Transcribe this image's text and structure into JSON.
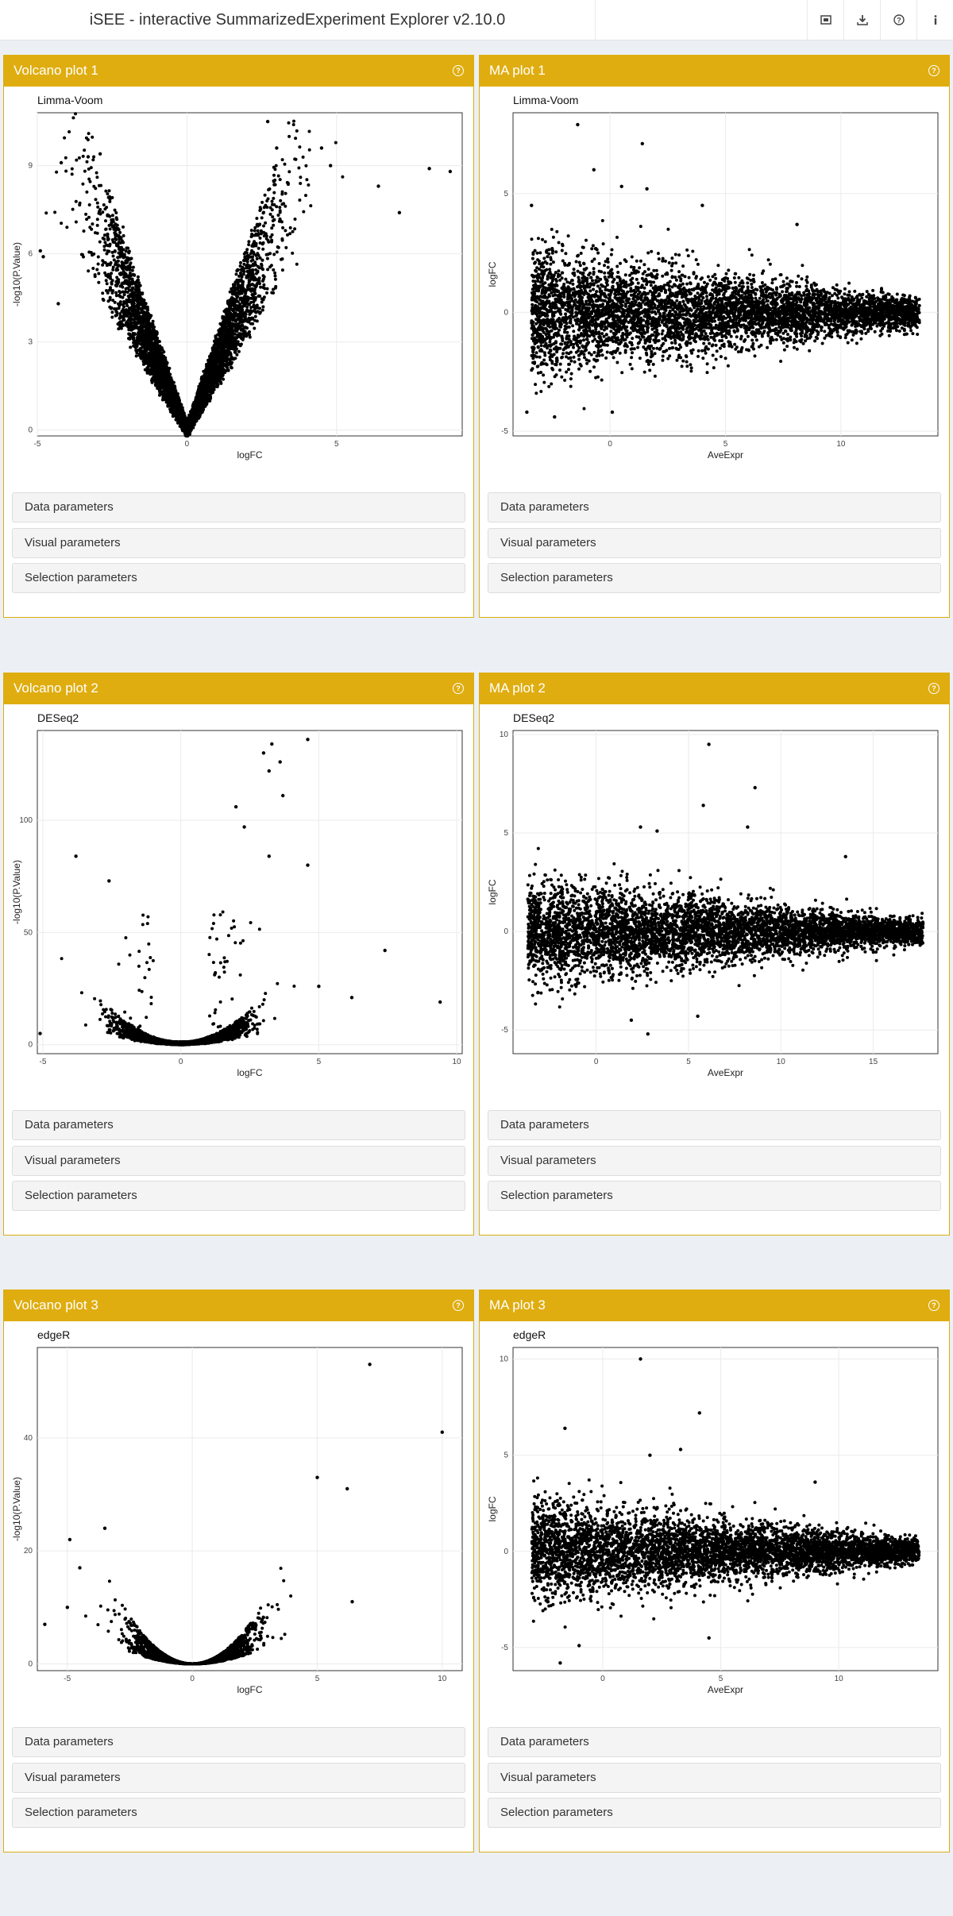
{
  "app": {
    "title": "iSEE - interactive SummarizedExperiment Explorer v2.10.0",
    "header_icons": [
      "screenshot-icon",
      "download-icon",
      "help-icon",
      "info-icon"
    ]
  },
  "colors": {
    "panel_header": "#dfad10",
    "background": "#ecf0f5",
    "points": "#000000"
  },
  "param_labels": {
    "data": "Data parameters",
    "visual": "Visual parameters",
    "selection": "Selection parameters"
  },
  "panels": [
    {
      "title": "Volcano plot 1",
      "chart_data": {
        "type": "scatter",
        "kind": "volcano",
        "subtitle": "Limma-Voom",
        "xlabel": "logFC",
        "ylabel": "-log10(P.Value)",
        "xlim": [
          -5,
          9.2
        ],
        "ylim": [
          -0.2,
          10.8
        ],
        "xticks": [
          -5,
          0,
          5
        ],
        "yticks": [
          0,
          3,
          6,
          9
        ],
        "outliers": [
          [
            2.7,
            10.5
          ],
          [
            4.5,
            9.6
          ],
          [
            6.4,
            8.3
          ],
          [
            7.1,
            7.4
          ],
          [
            8.1,
            8.9
          ],
          [
            8.8,
            8.8
          ],
          [
            3.0,
            9.6
          ],
          [
            -2.9,
            9.4
          ],
          [
            -3.3,
            9.3
          ],
          [
            -4.2,
            9.1
          ],
          [
            -4.8,
            5.9
          ],
          [
            -4.3,
            4.3
          ],
          [
            -4.9,
            6.1
          ],
          [
            4.8,
            9.0
          ]
        ],
        "grid": true
      }
    },
    {
      "title": "MA plot 1",
      "chart_data": {
        "type": "scatter",
        "kind": "ma",
        "subtitle": "Limma-Voom",
        "xlabel": "AveExpr",
        "ylabel": "logFC",
        "xlim": [
          -4.2,
          14.2
        ],
        "ylim": [
          -5.2,
          8.4
        ],
        "xticks": [
          0,
          5,
          10
        ],
        "yticks": [
          -5,
          0,
          5
        ],
        "outliers": [
          [
            -1.4,
            7.9
          ],
          [
            1.4,
            7.1
          ],
          [
            -0.7,
            6.0
          ],
          [
            0.5,
            5.3
          ],
          [
            1.6,
            5.2
          ],
          [
            -3.4,
            4.5
          ],
          [
            4.0,
            4.5
          ],
          [
            8.1,
            3.7
          ],
          [
            -3.6,
            -4.2
          ],
          [
            0.1,
            -4.2
          ],
          [
            -2.4,
            -4.4
          ]
        ],
        "grid": true
      }
    },
    {
      "title": "Volcano plot 2",
      "chart_data": {
        "type": "scatter",
        "kind": "volcano",
        "subtitle": "DESeq2",
        "xlabel": "logFC",
        "ylabel": "-log10(P.Value)",
        "xlim": [
          -5.2,
          10.2
        ],
        "ylim": [
          -4,
          140
        ],
        "xticks": [
          -5,
          0,
          5,
          10
        ],
        "yticks": [
          0,
          50,
          100
        ],
        "outliers": [
          [
            4.6,
            136
          ],
          [
            3.3,
            134
          ],
          [
            3.0,
            130
          ],
          [
            3.6,
            126
          ],
          [
            3.2,
            122
          ],
          [
            3.7,
            111
          ],
          [
            2.0,
            106
          ],
          [
            2.3,
            97
          ],
          [
            3.2,
            84
          ],
          [
            4.6,
            80
          ],
          [
            -3.8,
            84
          ],
          [
            -2.6,
            73
          ],
          [
            7.4,
            42
          ],
          [
            9.4,
            19
          ],
          [
            6.2,
            21
          ],
          [
            5.0,
            26
          ],
          [
            -5.1,
            5
          ]
        ],
        "grid": true
      }
    },
    {
      "title": "MA plot 2",
      "chart_data": {
        "type": "scatter",
        "kind": "ma",
        "subtitle": "DESeq2",
        "xlabel": "AveExpr",
        "ylabel": "logFC",
        "xlim": [
          -4.5,
          18.5
        ],
        "ylim": [
          -6.2,
          10.2
        ],
        "xticks": [
          0,
          5,
          10,
          15
        ],
        "yticks": [
          -5,
          0,
          5,
          10
        ],
        "outliers": [
          [
            6.1,
            9.5
          ],
          [
            8.6,
            7.3
          ],
          [
            5.8,
            6.4
          ],
          [
            8.2,
            5.3
          ],
          [
            3.3,
            5.1
          ],
          [
            2.4,
            5.3
          ],
          [
            13.5,
            3.8
          ],
          [
            -3.0,
            -0.5
          ],
          [
            -2.3,
            -0.5
          ],
          [
            2.8,
            -5.2
          ],
          [
            1.9,
            -4.5
          ],
          [
            5.5,
            -4.3
          ]
        ],
        "grid": true
      }
    },
    {
      "title": "Volcano plot 3",
      "chart_data": {
        "type": "scatter",
        "kind": "volcano",
        "subtitle": "edgeR",
        "xlabel": "logFC",
        "ylabel": "-log10(P.Value)",
        "xlim": [
          -6.2,
          10.8
        ],
        "ylim": [
          -1.2,
          56
        ],
        "xticks": [
          -5,
          0,
          5,
          10
        ],
        "yticks": [
          0,
          20,
          40
        ],
        "outliers": [
          [
            7.1,
            53
          ],
          [
            10.0,
            41
          ],
          [
            5.0,
            33
          ],
          [
            6.2,
            31
          ],
          [
            -3.5,
            24
          ],
          [
            -4.9,
            22
          ],
          [
            -4.5,
            17
          ],
          [
            -5.9,
            7
          ],
          [
            -5.0,
            10
          ],
          [
            6.4,
            11
          ]
        ],
        "grid": true
      }
    },
    {
      "title": "MA plot 3",
      "chart_data": {
        "type": "scatter",
        "kind": "ma",
        "subtitle": "edgeR",
        "xlabel": "AveExpr",
        "ylabel": "logFC",
        "xlim": [
          -3.8,
          14.2
        ],
        "ylim": [
          -6.2,
          10.6
        ],
        "xticks": [
          0,
          5,
          10
        ],
        "yticks": [
          -5,
          0,
          5,
          10
        ],
        "outliers": [
          [
            1.6,
            10.0
          ],
          [
            4.1,
            7.2
          ],
          [
            -1.6,
            6.4
          ],
          [
            3.3,
            5.3
          ],
          [
            2.0,
            5.0
          ],
          [
            9.0,
            3.6
          ],
          [
            -1.0,
            -4.9
          ],
          [
            -1.8,
            -5.8
          ],
          [
            4.5,
            -4.5
          ]
        ],
        "grid": true
      }
    }
  ]
}
